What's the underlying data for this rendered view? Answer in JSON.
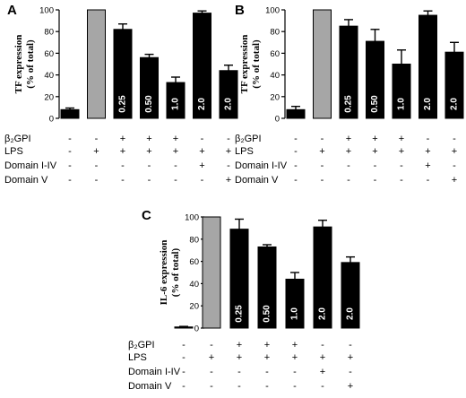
{
  "chart_data": [
    {
      "panel": "A",
      "type": "bar",
      "ylabel_lines": [
        "TF expression",
        "(% of total)"
      ],
      "ylim": [
        0,
        100
      ],
      "yticks": [
        "0",
        "20",
        "40",
        "60",
        "80",
        "100"
      ],
      "values": [
        8,
        100,
        82,
        56,
        33,
        97,
        44
      ],
      "errors": [
        1.5,
        0,
        5,
        3,
        5,
        2,
        5
      ],
      "bar_colors": [
        "#000000",
        "#a6a6a6",
        "#000000",
        "#000000",
        "#000000",
        "#000000",
        "#000000"
      ],
      "bar_labels": [
        "",
        "",
        "0.25",
        "0.50",
        "1.0",
        "2.0",
        "2.0"
      ],
      "conditions": [
        {
          "label": "β₂GPI",
          "signs": [
            "-",
            "-",
            "+",
            "+",
            "+",
            "-",
            "-"
          ]
        },
        {
          "label": "LPS",
          "signs": [
            "-",
            "+",
            "+",
            "+",
            "+",
            "+",
            "+"
          ]
        },
        {
          "label": "Domain I-IV",
          "signs": [
            "-",
            "-",
            "-",
            "-",
            "-",
            "+",
            "-"
          ]
        },
        {
          "label": "Domain V",
          "signs": [
            "-",
            "-",
            "-",
            "-",
            "-",
            "-",
            "+"
          ]
        }
      ]
    },
    {
      "panel": "B",
      "type": "bar",
      "ylabel_lines": [
        "TF expression",
        "(% of total)"
      ],
      "ylim": [
        0,
        100
      ],
      "yticks": [
        "0",
        "20",
        "40",
        "60",
        "80",
        "100"
      ],
      "values": [
        8,
        100,
        85,
        71,
        50,
        95,
        61
      ],
      "errors": [
        3,
        0,
        6,
        11,
        13,
        4,
        9
      ],
      "bar_colors": [
        "#000000",
        "#a6a6a6",
        "#000000",
        "#000000",
        "#000000",
        "#000000",
        "#000000"
      ],
      "bar_labels": [
        "",
        "",
        "0.25",
        "0.50",
        "1.0",
        "2.0",
        "2.0"
      ],
      "conditions": [
        {
          "label": "β₂GPI",
          "signs": [
            "-",
            "-",
            "+",
            "+",
            "+",
            "-",
            "-"
          ]
        },
        {
          "label": "LPS",
          "signs": [
            "-",
            "+",
            "+",
            "+",
            "+",
            "+",
            "+"
          ]
        },
        {
          "label": "Domain I-IV",
          "signs": [
            "-",
            "-",
            "-",
            "-",
            "-",
            "+",
            "-"
          ]
        },
        {
          "label": "Domain V",
          "signs": [
            "-",
            "-",
            "-",
            "-",
            "-",
            "-",
            "+"
          ]
        }
      ]
    },
    {
      "panel": "C",
      "type": "bar",
      "ylabel_lines": [
        "IL-6 expression",
        "(% of total)"
      ],
      "ylim": [
        0,
        100
      ],
      "yticks": [
        "0",
        "20",
        "40",
        "60",
        "80",
        "100"
      ],
      "values": [
        1,
        100,
        89,
        73,
        44,
        91,
        59
      ],
      "errors": [
        0.5,
        0,
        9,
        2,
        6,
        6,
        5
      ],
      "bar_colors": [
        "#000000",
        "#a6a6a6",
        "#000000",
        "#000000",
        "#000000",
        "#000000",
        "#000000"
      ],
      "bar_labels": [
        "",
        "",
        "0.25",
        "0.50",
        "1.0",
        "2.0",
        "2.0"
      ],
      "conditions": [
        {
          "label": "β₂GPI",
          "signs": [
            "-",
            "-",
            "+",
            "+",
            "+",
            "-",
            "-"
          ]
        },
        {
          "label": "LPS",
          "signs": [
            "-",
            "+",
            "+",
            "+",
            "+",
            "+",
            "+"
          ]
        },
        {
          "label": "Domain I-IV",
          "signs": [
            "-",
            "-",
            "-",
            "-",
            "-",
            "+",
            "-"
          ]
        },
        {
          "label": "Domain V",
          "signs": [
            "-",
            "-",
            "-",
            "-",
            "-",
            "-",
            "+"
          ]
        }
      ]
    }
  ]
}
